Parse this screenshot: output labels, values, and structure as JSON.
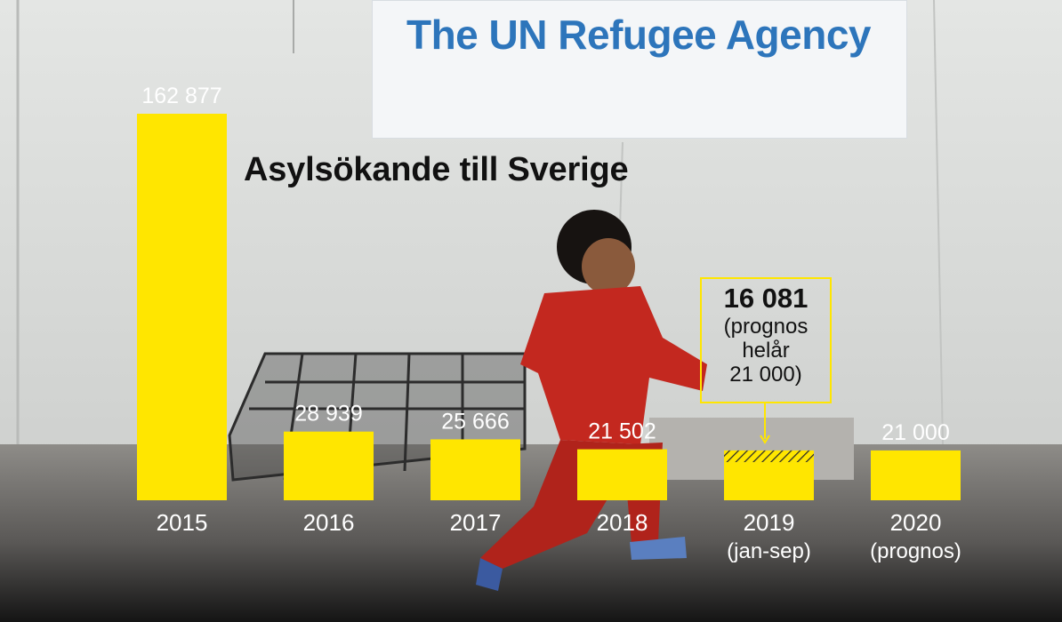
{
  "banner": {
    "text": "The UN Refugee Agency"
  },
  "chart_data": {
    "type": "bar",
    "title": "Asylsökande till Sverige",
    "categories": [
      "2015",
      "2016",
      "2017",
      "2018",
      "2019",
      "2020"
    ],
    "category_sublabels": [
      "",
      "",
      "",
      "",
      "(jan-sep)",
      "(prognos)"
    ],
    "values": [
      162877,
      28939,
      25666,
      21502,
      16081,
      21000
    ],
    "value_labels": [
      "162 877",
      "28 939",
      "25 666",
      "21 502",
      "",
      "21 000"
    ],
    "forecast_full_year_2019": 21000,
    "annotation": {
      "category": "2019",
      "value_text": "16 081",
      "lines": [
        "(prognos",
        "helår",
        "21 000)"
      ]
    },
    "ylim": [
      0,
      162877
    ],
    "bar_color": "#ffe600"
  }
}
